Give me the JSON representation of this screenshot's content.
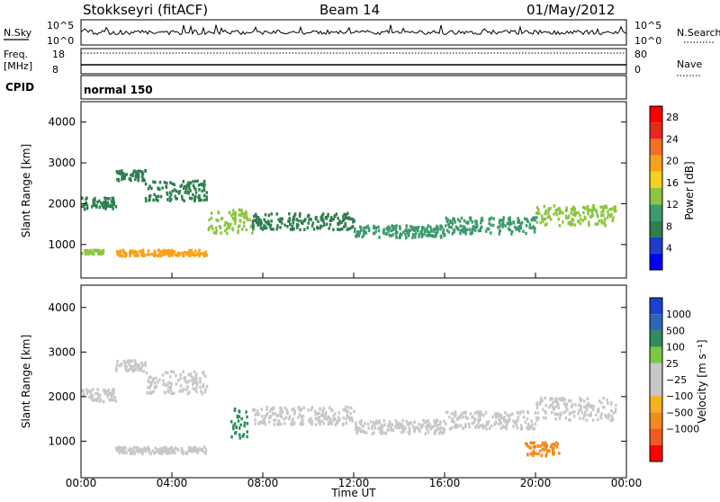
{
  "header": {
    "station": "Stokkseyri (fitACF)",
    "beam": "Beam 14",
    "date": "01/May/2012"
  },
  "params": {
    "nsky_label": "N.Sky",
    "nsearch_label": "N.Search",
    "freq_label": "Freq.",
    "freq_unit": "[MHz]",
    "nave_label": "Nave",
    "cpid_label": "CPID",
    "cpid_value": "normal 150",
    "noise_ticks": [
      "10^5",
      "10^0"
    ],
    "freq_ticks": [
      "18",
      "8"
    ],
    "nave_ticks": [
      "80",
      "0"
    ]
  },
  "chart_data": [
    {
      "type": "heatmap",
      "name": "power",
      "ylabel": "Slant Range [km]",
      "xlabel": "Time UT",
      "x_ticks": [
        "00:00",
        "04:00",
        "08:00",
        "12:00",
        "16:00",
        "20:00",
        "00:00"
      ],
      "y_ticks": [
        1000,
        2000,
        3000,
        4000
      ],
      "ylim": [
        180,
        4500
      ],
      "xlim_hours": [
        0,
        24
      ],
      "colorbar": {
        "label": "Power [dB]",
        "ticks": [
          4,
          8,
          12,
          16,
          20,
          24,
          28
        ],
        "range": [
          0,
          30
        ],
        "colors": [
          "#0000ff",
          "#1e3cc8",
          "#2f7f4f",
          "#3d9a6e",
          "#8cc63f",
          "#f3d11c",
          "#f7a21b",
          "#f36f21",
          "#e8281e",
          "#ff0000"
        ]
      },
      "features": [
        {
          "from_h": 0.0,
          "to_h": 1.5,
          "range_km": [
            1900,
            2200
          ],
          "power_db": 8
        },
        {
          "from_h": 1.5,
          "to_h": 2.8,
          "range_km": [
            2600,
            2850
          ],
          "power_db": 6
        },
        {
          "from_h": 2.8,
          "to_h": 5.5,
          "range_km": [
            2100,
            2600
          ],
          "power_db": 6
        },
        {
          "from_h": 5.5,
          "to_h": 7.5,
          "range_km": [
            1300,
            1900
          ],
          "power_db": 14
        },
        {
          "from_h": 7.5,
          "to_h": 12.0,
          "range_km": [
            1400,
            1800
          ],
          "power_db": 7
        },
        {
          "from_h": 12.0,
          "to_h": 16.0,
          "range_km": [
            1200,
            1500
          ],
          "power_db": 9
        },
        {
          "from_h": 16.0,
          "to_h": 20.0,
          "range_km": [
            1300,
            1700
          ],
          "power_db": 10
        },
        {
          "from_h": 20.0,
          "to_h": 23.5,
          "range_km": [
            1500,
            2000
          ],
          "power_db": 12
        },
        {
          "from_h": 0.0,
          "to_h": 1.0,
          "range_km": [
            800,
            900
          ],
          "power_db": 14
        },
        {
          "from_h": 1.5,
          "to_h": 5.5,
          "range_km": [
            750,
            900
          ],
          "power_db": 18
        }
      ]
    },
    {
      "type": "heatmap",
      "name": "velocity",
      "ylabel": "Slant Range [km]",
      "xlabel": "Time UT",
      "x_ticks": [
        "00:00",
        "04:00",
        "08:00",
        "12:00",
        "16:00",
        "20:00",
        "00:00"
      ],
      "y_ticks": [
        1000,
        2000,
        3000,
        4000
      ],
      "ylim": [
        180,
        4500
      ],
      "xlim_hours": [
        0,
        24
      ],
      "colorbar": {
        "label": "Velocity [m s⁻¹]",
        "ticks": [
          "1000",
          "500",
          "100",
          "25",
          "−25",
          "−100",
          "−500",
          "−1000"
        ],
        "colors": [
          "#1f3fd0",
          "#2c66b8",
          "#2e8c5a",
          "#7cc843",
          "#c8c8c8",
          "#c8c8c8",
          "#f7b11e",
          "#f28a1c",
          "#f05a1e",
          "#ff0000"
        ]
      },
      "features": [
        {
          "from_h": 0.0,
          "to_h": 1.5,
          "range_km": [
            1900,
            2200
          ],
          "velocity": 0
        },
        {
          "from_h": 1.5,
          "to_h": 2.8,
          "range_km": [
            2600,
            2850
          ],
          "velocity": 0
        },
        {
          "from_h": 2.8,
          "to_h": 5.5,
          "range_km": [
            2100,
            2600
          ],
          "velocity": 0
        },
        {
          "from_h": 6.5,
          "to_h": 7.3,
          "range_km": [
            1100,
            1800
          ],
          "velocity": 100
        },
        {
          "from_h": 7.5,
          "to_h": 12.0,
          "range_km": [
            1400,
            1800
          ],
          "velocity": 0
        },
        {
          "from_h": 12.0,
          "to_h": 16.0,
          "range_km": [
            1200,
            1500
          ],
          "velocity": 0
        },
        {
          "from_h": 16.0,
          "to_h": 20.0,
          "range_km": [
            1300,
            1700
          ],
          "velocity": 0
        },
        {
          "from_h": 20.0,
          "to_h": 23.5,
          "range_km": [
            1500,
            2000
          ],
          "velocity": 0
        },
        {
          "from_h": 1.5,
          "to_h": 5.5,
          "range_km": [
            750,
            900
          ],
          "velocity": 0
        },
        {
          "from_h": 19.5,
          "to_h": 21.0,
          "range_km": [
            700,
            1000
          ],
          "velocity": -300
        }
      ]
    }
  ]
}
